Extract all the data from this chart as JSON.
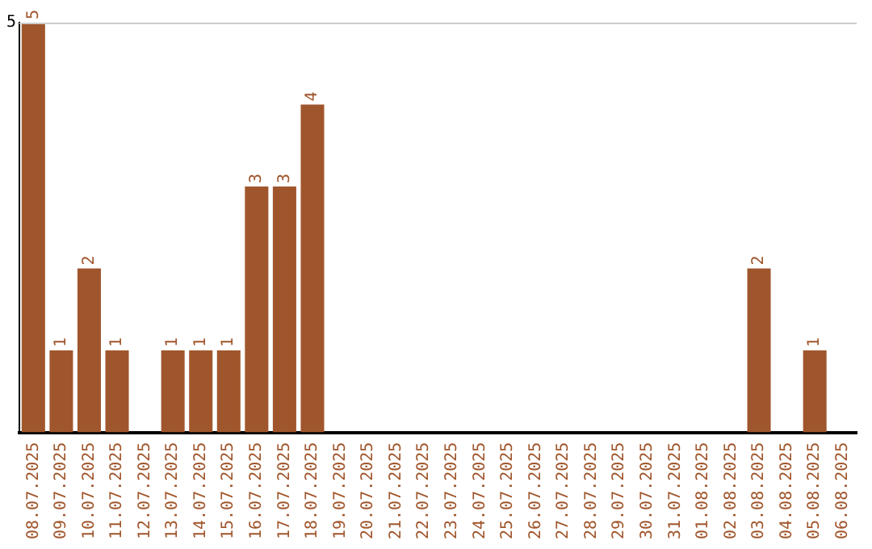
{
  "chart_data": {
    "type": "bar",
    "categories": [
      "08.07.2025",
      "09.07.2025",
      "10.07.2025",
      "11.07.2025",
      "12.07.2025",
      "13.07.2025",
      "14.07.2025",
      "15.07.2025",
      "16.07.2025",
      "17.07.2025",
      "18.07.2025",
      "19.07.2025",
      "20.07.2025",
      "21.07.2025",
      "22.07.2025",
      "23.07.2025",
      "24.07.2025",
      "25.07.2025",
      "26.07.2025",
      "27.07.2025",
      "28.07.2025",
      "29.07.2025",
      "30.07.2025",
      "31.07.2025",
      "01.08.2025",
      "02.08.2025",
      "03.08.2025",
      "04.08.2025",
      "05.08.2025",
      "06.08.2025"
    ],
    "values": [
      5,
      1,
      2,
      1,
      0,
      1,
      1,
      1,
      3,
      3,
      4,
      0,
      0,
      0,
      0,
      0,
      0,
      0,
      0,
      0,
      0,
      0,
      0,
      0,
      0,
      0,
      2,
      0,
      1,
      0
    ],
    "value_labels": [
      "5",
      "1",
      "2",
      "1",
      null,
      "1",
      "1",
      "1",
      "3",
      "3",
      "4",
      null,
      null,
      null,
      null,
      null,
      null,
      null,
      null,
      null,
      null,
      null,
      null,
      null,
      null,
      null,
      "2",
      null,
      "1",
      null
    ],
    "color": "#a0562c",
    "ylim": [
      0,
      5
    ],
    "yticks": [
      5
    ],
    "legend": false
  }
}
